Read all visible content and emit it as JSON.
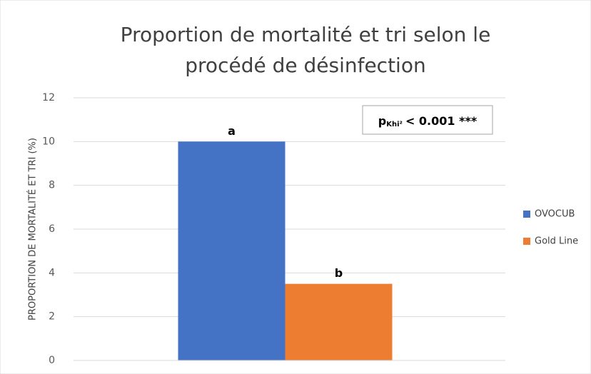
{
  "chart_data": {
    "type": "bar",
    "title": [
      "Proportion de mortalité et tri selon le",
      "procédé de désinfection"
    ],
    "y_label": "PROPORTION DE MORTALITÉ ET TRI (%)",
    "categories": [
      null
    ],
    "series": [
      {
        "name": "OVOCUB",
        "color": "#4472c4",
        "values": [
          10
        ],
        "label": "a"
      },
      {
        "name": "Gold Line",
        "color": "#ed7d31",
        "values": [
          3.5
        ],
        "label": "b"
      }
    ],
    "annotation": {
      "text": "p",
      "subscript": "Khi²",
      "suffix": "< 0.001 ***"
    },
    "ylim": [
      0,
      12
    ],
    "yticks": [
      0,
      2,
      4,
      6,
      8,
      10,
      12
    ],
    "grid": true,
    "legend": "right"
  }
}
